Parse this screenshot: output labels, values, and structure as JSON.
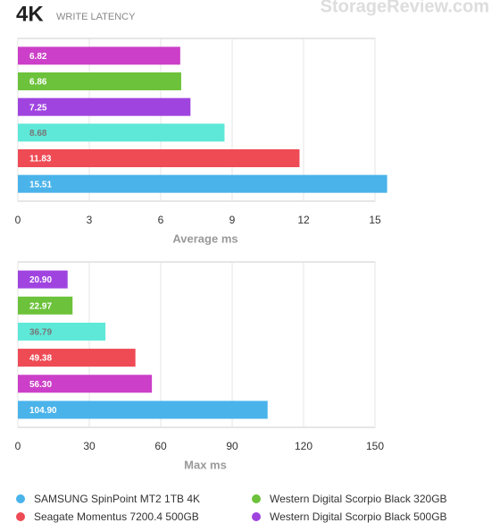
{
  "title": "4K",
  "subtitle": "WRITE LATENCY",
  "watermark": "StorageReview.com",
  "chart_data": [
    {
      "type": "bar",
      "orientation": "horizontal",
      "x_label": "Average ms",
      "values": [
        6.82,
        6.86,
        7.25,
        8.68,
        11.83,
        15.51
      ],
      "colors": [
        "#cc3fc8",
        "#6cc23a",
        "#a044e0",
        "#5ee8d8",
        "#ee4b55",
        "#4ab3ea"
      ],
      "xlim": [
        0,
        15
      ],
      "xticks": [
        0,
        3,
        6,
        9,
        12,
        15
      ],
      "grid": true
    },
    {
      "type": "bar",
      "orientation": "horizontal",
      "x_label": "Max ms",
      "values": [
        20.9,
        22.97,
        36.79,
        49.38,
        56.3,
        104.9
      ],
      "value_labels": [
        "20.90",
        "22.97",
        "36.79",
        "49.38",
        "56.30",
        "104.90"
      ],
      "colors": [
        "#a044e0",
        "#6cc23a",
        "#5ee8d8",
        "#ee4b55",
        "#cc3fc8",
        "#4ab3ea"
      ],
      "xlim": [
        0,
        150
      ],
      "xticks": [
        0,
        30,
        60,
        90,
        120,
        150
      ],
      "grid": true
    }
  ],
  "legend": [
    {
      "name": "SAMSUNG SpinPoint MT2 1TB 4K",
      "color": "#4ab3ea"
    },
    {
      "name": "Western Digital Scorpio Black 320GB",
      "color": "#6cc23a"
    },
    {
      "name": "Seagate Momentus 7200.4 500GB",
      "color": "#ee4b55"
    },
    {
      "name": "Western Digital Scorpio Black 500GB",
      "color": "#a044e0"
    }
  ]
}
